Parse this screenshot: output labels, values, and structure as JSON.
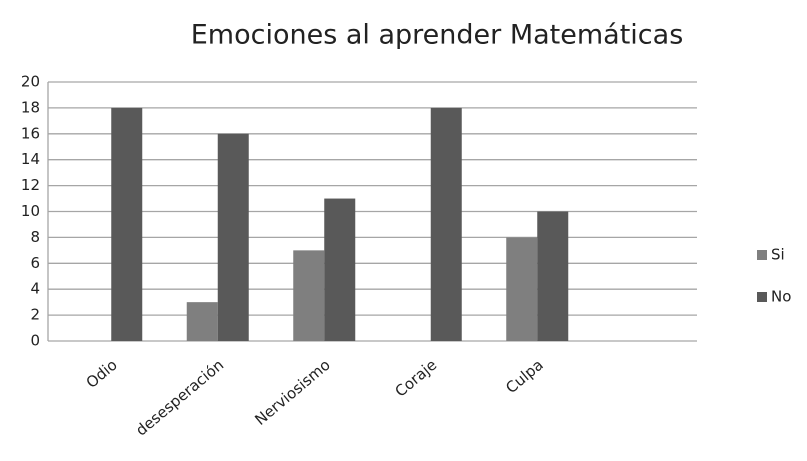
{
  "chart_data": {
    "type": "bar",
    "title": "Emociones al aprender Matemáticas",
    "categories": [
      "Odio",
      "desesperación",
      "Nerviosismo",
      "Coraje",
      "Culpa",
      null
    ],
    "series": [
      {
        "name": "Si",
        "color": "#7f7f7f",
        "values": [
          0,
          3,
          7,
          0,
          8,
          null
        ]
      },
      {
        "name": "No",
        "color": "#595959",
        "values": [
          18,
          16,
          11,
          18,
          10,
          null
        ]
      }
    ],
    "ylim": [
      0,
      20
    ],
    "yticks": [
      0,
      2,
      4,
      6,
      8,
      10,
      12,
      14,
      16,
      18,
      20
    ],
    "grid": true,
    "legend": "right"
  }
}
